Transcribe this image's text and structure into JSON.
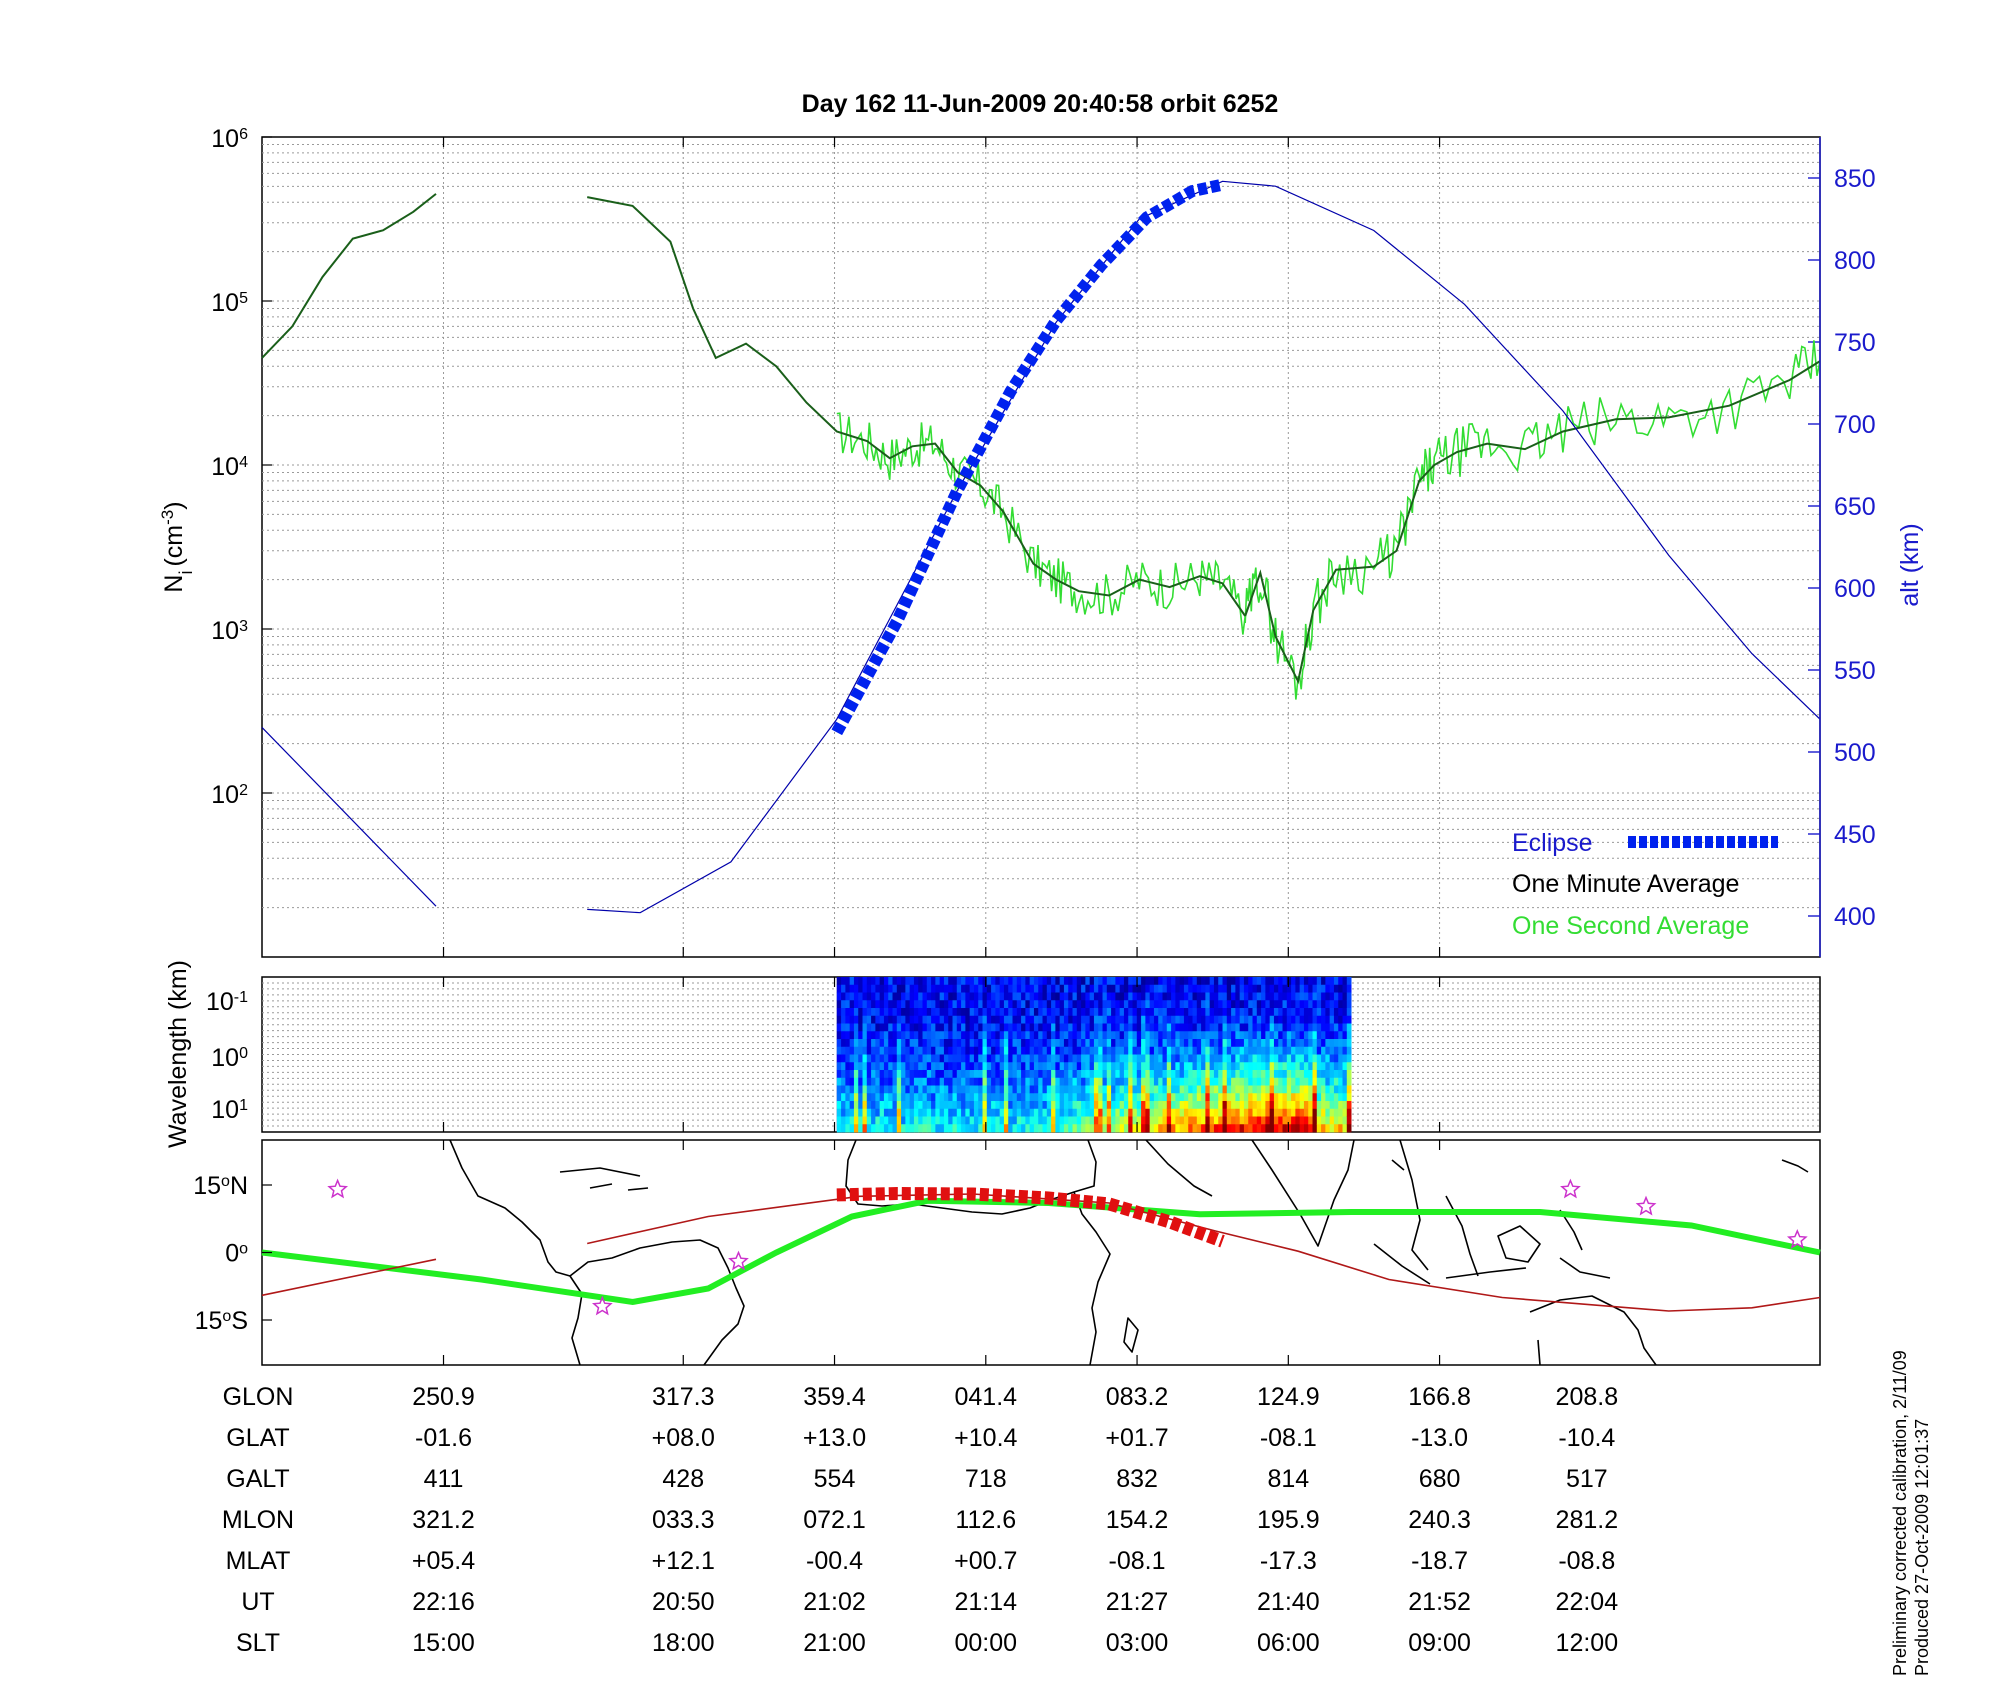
{
  "title": "Day 162  11-Jun-2009 20:40:58   orbit 6252",
  "colors": {
    "density_minute": "#1a5f1a",
    "density_second": "#33dd33",
    "altitude": "#0000aa",
    "eclipse": "#0022ee",
    "axis_right": "#1a1acc",
    "track": "#b01818",
    "eclipse_track": "#e01010",
    "equator": "#22ee22",
    "stars": "#cc33cc"
  },
  "chart_data": [
    {
      "type": "line",
      "panel": "density",
      "y_scale": "log",
      "ylabel_left": "N",
      "ylabel_left_sub": "i",
      "ylabel_left_units": "(cm",
      "ylabel_left_exp": "-3",
      "ylabel_left_end": ")",
      "ylim_left": [
        10,
        1000000
      ],
      "yticks_left": [
        {
          "base": "10",
          "exp": "2",
          "value": 100
        },
        {
          "base": "10",
          "exp": "3",
          "value": 1000
        },
        {
          "base": "10",
          "exp": "4",
          "value": 10000
        },
        {
          "base": "10",
          "exp": "5",
          "value": 100000
        },
        {
          "base": "10",
          "exp": "6",
          "value": 1000000
        }
      ],
      "ylabel_right": "alt (km)",
      "ylim_right": [
        375,
        875
      ],
      "yticks_right": [
        400,
        450,
        500,
        550,
        600,
        650,
        700,
        750,
        800,
        850
      ],
      "legend": [
        {
          "label": "Eclipse"
        },
        {
          "label": "One Minute Average"
        },
        {
          "label": "One Second Average"
        }
      ],
      "grid": true,
      "x_range_min": [
        -1.4,
        11.6
      ],
      "series": [
        {
          "name": "One Minute Average",
          "axis": "left",
          "segments": [
            [
              [
                -1.4,
                45000
              ],
              [
                -1.0,
                70000
              ],
              [
                -0.6,
                140000
              ],
              [
                -0.2,
                240000
              ],
              [
                0.2,
                270000
              ],
              [
                0.6,
                350000
              ],
              [
                0.9,
                450000
              ]
            ],
            [
              [
                2.9,
                430000
              ],
              [
                3.5,
                380000
              ],
              [
                4.0,
                230000
              ],
              [
                4.3,
                90000
              ],
              [
                4.6,
                45000
              ],
              [
                5.0,
                55000
              ],
              [
                5.4,
                40000
              ],
              [
                5.8,
                24000
              ],
              [
                6.2,
                16000
              ],
              [
                6.6,
                14000
              ],
              [
                6.9,
                11000
              ],
              [
                7.2,
                13000
              ],
              [
                7.5,
                13500
              ],
              [
                7.8,
                9000
              ],
              [
                8.1,
                7500
              ],
              [
                8.4,
                5200
              ],
              [
                8.8,
                2500
              ],
              [
                9.1,
                2000
              ],
              [
                9.4,
                1700
              ],
              [
                9.8,
                1600
              ],
              [
                10.2,
                2000
              ],
              [
                10.6,
                1800
              ],
              [
                11.0,
                2100
              ],
              [
                11.3,
                1900
              ],
              [
                11.6,
                1200
              ]
            ]
          ]
        },
        {
          "name": "One Second Average",
          "axis": "left",
          "segments": [
            [
              [
                11.6,
                1200
              ],
              [
                11.8,
                2200
              ],
              [
                12.0,
                900
              ],
              [
                12.3,
                480
              ],
              [
                12.5,
                1300
              ],
              [
                12.8,
                2300
              ],
              [
                13.3,
                2400
              ],
              [
                13.6,
                3000
              ],
              [
                13.9,
                8000
              ],
              [
                14.1,
                10000
              ],
              [
                14.4,
                12000
              ],
              [
                14.8,
                13500
              ],
              [
                15.3,
                12500
              ],
              [
                15.8,
                16000
              ],
              [
                16.5,
                19000
              ],
              [
                17.2,
                19500
              ],
              [
                18.0,
                23000
              ],
              [
                18.8,
                33000
              ],
              [
                19.2,
                43000
              ]
            ]
          ]
        },
        {
          "name": "alt (km)",
          "axis": "right",
          "segments": [
            [
              [
                -1.4,
                515
              ],
              [
                0.9,
                406
              ]
            ],
            [
              [
                2.9,
                404
              ],
              [
                3.6,
                402
              ],
              [
                4.8,
                433
              ],
              [
                6.2,
                520
              ],
              [
                7.8,
                660
              ],
              [
                9.1,
                762
              ],
              [
                10.2,
                825
              ],
              [
                11.3,
                848
              ],
              [
                12.0,
                845
              ],
              [
                13.3,
                818
              ],
              [
                14.5,
                773
              ],
              [
                15.8,
                708
              ],
              [
                17.2,
                620
              ],
              [
                18.3,
                560
              ],
              [
                19.2,
                520
              ]
            ]
          ]
        },
        {
          "name": "Eclipse",
          "axis": "right",
          "segments": [
            [
              [
                6.2,
                512
              ],
              [
                7.0,
                580
              ],
              [
                7.8,
                660
              ],
              [
                8.5,
                720
              ],
              [
                9.1,
                763
              ],
              [
                9.7,
                797
              ],
              [
                10.3,
                826
              ],
              [
                10.9,
                842
              ],
              [
                11.3,
                846
              ]
            ]
          ]
        }
      ]
    },
    {
      "type": "heatmap",
      "panel": "wavelength",
      "ylabel": "Wavelength (km)",
      "y_scale": "log",
      "yticks": [
        {
          "base": "10",
          "exp": "-1"
        },
        {
          "base": "10",
          "exp": "0"
        },
        {
          "base": "10",
          "exp": "1"
        }
      ],
      "x_range_min": [
        6.2,
        13.0
      ],
      "colormap": "jet",
      "seed": 162
    },
    {
      "type": "line",
      "panel": "map",
      "yticks": [
        {
          "label": "15",
          "deg": "o",
          "hemi": "N",
          "value": 15
        },
        {
          "label": "0",
          "deg": "o",
          "hemi": "",
          "value": 0
        },
        {
          "label": "15",
          "deg": "o",
          "hemi": "S",
          "value": -15
        }
      ],
      "ylim": [
        -25,
        25
      ],
      "series": [
        {
          "name": "magnetic equator",
          "points": [
            [
              -1.4,
              0
            ],
            [
              1.5,
              -6
            ],
            [
              3.5,
              -11
            ],
            [
              4.5,
              -8
            ],
            [
              5.4,
              0
            ],
            [
              6.4,
              8
            ],
            [
              7.4,
              11.5
            ],
            [
              9.0,
              11
            ],
            [
              11.0,
              8.5
            ],
            [
              13.0,
              9
            ],
            [
              15.5,
              9
            ],
            [
              17.5,
              6
            ],
            [
              19.2,
              0
            ]
          ]
        },
        {
          "name": "satellite track",
          "points": [
            [
              -1.4,
              -9.5
            ],
            [
              0.9,
              -1.5
            ]
          ]
        },
        {
          "name": "satellite track",
          "points": [
            [
              2.9,
              2
            ],
            [
              4.5,
              8
            ],
            [
              6.5,
              12.5
            ],
            [
              8.0,
              13
            ],
            [
              9.8,
              11
            ],
            [
              11.2,
              4.8
            ],
            [
              12.3,
              0.3
            ],
            [
              13.5,
              -6
            ],
            [
              15.0,
              -10
            ],
            [
              17.2,
              -13
            ],
            [
              18.3,
              -12.3
            ],
            [
              19.2,
              -10
            ]
          ]
        },
        {
          "name": "eclipse track",
          "points": [
            [
              6.2,
              12.8
            ],
            [
              7.0,
              13.1
            ],
            [
              8.0,
              13.0
            ],
            [
              9.0,
              12.1
            ],
            [
              9.8,
              10.8
            ],
            [
              10.6,
              6.8
            ],
            [
              11.3,
              2.5
            ]
          ]
        }
      ],
      "stars": [
        [
          -0.4,
          14
        ],
        [
          3.1,
          -12
        ],
        [
          4.9,
          -2
        ],
        [
          15.9,
          14
        ],
        [
          16.9,
          10.2
        ],
        [
          18.9,
          2.8
        ]
      ]
    },
    {
      "type": "table",
      "panel": "ephemeris",
      "row_labels": [
        "GLON",
        "GLAT",
        "GALT",
        "MLON",
        "MLAT",
        "UT",
        "SLT"
      ],
      "columns": [
        {
          "x": 1.0,
          "values": [
            "250.9",
            "-01.6",
            "411",
            "321.2",
            "+05.4",
            "22:16",
            "15:00"
          ]
        },
        {
          "x": 4.17,
          "values": [
            "317.3",
            "+08.0",
            "428",
            "033.3",
            "+12.1",
            "20:50",
            "18:00"
          ]
        },
        {
          "x": 6.17,
          "values": [
            "359.4",
            "+13.0",
            "554",
            "072.1",
            "-00.4",
            "21:02",
            "21:00"
          ]
        },
        {
          "x": 8.17,
          "values": [
            "041.4",
            "+10.4",
            "718",
            "112.6",
            "+00.7",
            "21:14",
            "00:00"
          ]
        },
        {
          "x": 10.17,
          "values": [
            "083.2",
            "+01.7",
            "832",
            "154.2",
            "-08.1",
            "21:27",
            "03:00"
          ]
        },
        {
          "x": 12.17,
          "values": [
            "124.9",
            "-08.1",
            "814",
            "195.9",
            "-17.3",
            "21:40",
            "06:00"
          ]
        },
        {
          "x": 14.17,
          "values": [
            "166.8",
            "-13.0",
            "680",
            "240.3",
            "-18.7",
            "21:52",
            "09:00"
          ]
        },
        {
          "x": 16.17,
          "values": [
            "208.8",
            "-10.4",
            "517",
            "281.2",
            "-08.8",
            "22:04",
            "12:00"
          ]
        }
      ]
    }
  ],
  "footnote": {
    "line1": "Preliminary corrected calibration, 2/11/09",
    "line2": "Produced 27-Oct-2009 12:01:37"
  }
}
